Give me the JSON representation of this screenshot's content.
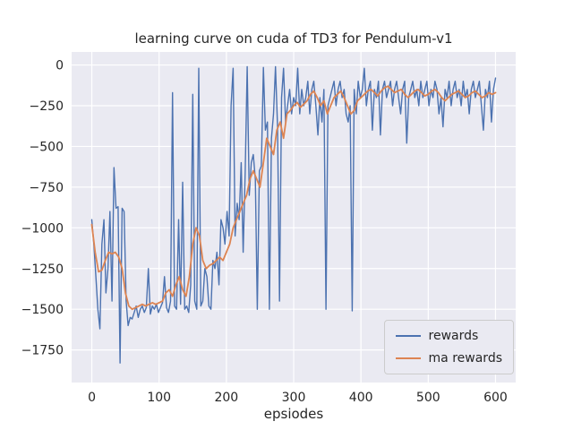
{
  "chart_data": {
    "type": "line",
    "title": "learning curve on cuda of TD3 for Pendulum-v1",
    "xlabel": "epsiodes",
    "ylabel": "",
    "xlim": [
      -30,
      630
    ],
    "ylim": [
      -1950,
      80
    ],
    "grid": true,
    "legend_position": "lower right",
    "colors": {
      "axes_bg": "#eaeaf2",
      "grid": "#ffffff",
      "text": "#262626",
      "rewards": "#4c72b0",
      "ma_rewards": "#dd8452"
    },
    "x_ticks": [
      {
        "v": 0,
        "label": "0"
      },
      {
        "v": 100,
        "label": "100"
      },
      {
        "v": 200,
        "label": "200"
      },
      {
        "v": 300,
        "label": "300"
      },
      {
        "v": 400,
        "label": "400"
      },
      {
        "v": 500,
        "label": "500"
      },
      {
        "v": 600,
        "label": "600"
      }
    ],
    "y_ticks": [
      {
        "v": 0,
        "label": "0"
      },
      {
        "v": -250,
        "label": "−250"
      },
      {
        "v": -500,
        "label": "−500"
      },
      {
        "v": -750,
        "label": "−750"
      },
      {
        "v": -1000,
        "label": "−1000"
      },
      {
        "v": -1250,
        "label": "−1250"
      },
      {
        "v": -1500,
        "label": "−1500"
      },
      {
        "v": -1750,
        "label": "−1750"
      }
    ],
    "series": [
      {
        "name": "rewards",
        "color": "#4c72b0",
        "lw": 1.4,
        "x_start": 0,
        "x_step": 3,
        "values": [
          -950,
          -1100,
          -1300,
          -1500,
          -1620,
          -1100,
          -950,
          -1400,
          -1250,
          -900,
          -1450,
          -630,
          -880,
          -870,
          -1830,
          -880,
          -900,
          -1450,
          -1600,
          -1550,
          -1560,
          -1520,
          -1480,
          -1550,
          -1500,
          -1480,
          -1520,
          -1490,
          -1250,
          -1530,
          -1480,
          -1500,
          -1470,
          -1520,
          -1490,
          -1460,
          -1300,
          -1490,
          -1520,
          -1450,
          -170,
          -1480,
          -1500,
          -950,
          -1470,
          -720,
          -1500,
          -1480,
          -1520,
          -1350,
          -180,
          -1450,
          -1500,
          -20,
          -1480,
          -1450,
          -1250,
          -1300,
          -1480,
          -1500,
          -1200,
          -1250,
          -1150,
          -1350,
          -950,
          -1000,
          -1100,
          -900,
          -1050,
          -250,
          -20,
          -1050,
          -850,
          -950,
          -600,
          -1150,
          -650,
          -10,
          -800,
          -600,
          -550,
          -700,
          -1500,
          -650,
          -620,
          -15,
          -400,
          -350,
          -1500,
          -450,
          -300,
          -10,
          -380,
          -1450,
          -200,
          -20,
          -350,
          -250,
          -150,
          -300,
          -200,
          -250,
          -20,
          -300,
          -150,
          -250,
          -200,
          -100,
          -300,
          -150,
          -100,
          -250,
          -430,
          -200,
          -350,
          -150,
          -1500,
          -250,
          -200,
          -150,
          -100,
          -250,
          -150,
          -100,
          -200,
          -150,
          -300,
          -350,
          -250,
          -1510,
          -150,
          -300,
          -100,
          -200,
          -150,
          -20,
          -250,
          -150,
          -100,
          -400,
          -150,
          -200,
          -100,
          -430,
          -150,
          -100,
          -200,
          -150,
          -100,
          -250,
          -150,
          -100,
          -200,
          -300,
          -150,
          -100,
          -480,
          -200,
          -150,
          -100,
          -200,
          -150,
          -250,
          -100,
          -200,
          -150,
          -100,
          -250,
          -150,
          -200,
          -100,
          -150,
          -300,
          -200,
          -380,
          -150,
          -200,
          -100,
          -250,
          -150,
          -100,
          -200,
          -150,
          -250,
          -100,
          -200,
          -150,
          -300,
          -150,
          -100,
          -200,
          -150,
          -100,
          -250,
          -400,
          -150,
          -200,
          -100,
          -350,
          -150,
          -80
        ]
      },
      {
        "name": "ma rewards",
        "color": "#dd8452",
        "lw": 1.8,
        "x_start": 0,
        "x_step": 5,
        "values": [
          -980,
          -1150,
          -1270,
          -1260,
          -1200,
          -1150,
          -1160,
          -1150,
          -1180,
          -1250,
          -1400,
          -1480,
          -1500,
          -1490,
          -1480,
          -1470,
          -1480,
          -1470,
          -1460,
          -1470,
          -1460,
          -1450,
          -1400,
          -1380,
          -1420,
          -1350,
          -1300,
          -1380,
          -1420,
          -1300,
          -1100,
          -1000,
          -1050,
          -1200,
          -1250,
          -1230,
          -1220,
          -1200,
          -1180,
          -1200,
          -1150,
          -1100,
          -1000,
          -950,
          -900,
          -850,
          -800,
          -700,
          -650,
          -700,
          -750,
          -600,
          -450,
          -500,
          -550,
          -400,
          -350,
          -450,
          -300,
          -280,
          -250,
          -230,
          -260,
          -240,
          -220,
          -180,
          -160,
          -200,
          -250,
          -220,
          -300,
          -250,
          -200,
          -180,
          -160,
          -200,
          -250,
          -300,
          -280,
          -220,
          -200,
          -180,
          -160,
          -150,
          -170,
          -190,
          -160,
          -140,
          -130,
          -150,
          -170,
          -160,
          -150,
          -180,
          -200,
          -180,
          -160,
          -150,
          -170,
          -190,
          -180,
          -160,
          -150,
          -170,
          -200,
          -220,
          -200,
          -180,
          -170,
          -160,
          -180,
          -200,
          -190,
          -170,
          -160,
          -180,
          -200,
          -190,
          -170,
          -180,
          -170
        ]
      }
    ]
  }
}
